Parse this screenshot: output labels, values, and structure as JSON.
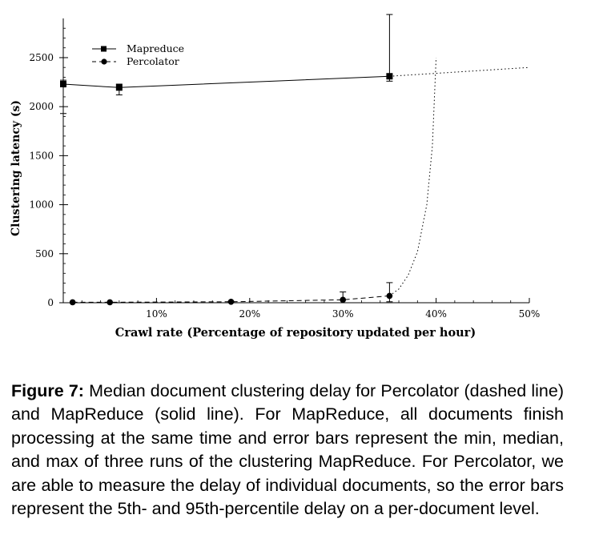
{
  "chart_data": {
    "type": "line",
    "xlabel": "Crawl rate (Percentage of repository updated per hour)",
    "ylabel": "Clustering latency (s)",
    "xlim": [
      0,
      50
    ],
    "ylim": [
      0,
      2900
    ],
    "x_ticks": [
      10,
      20,
      30,
      40,
      50
    ],
    "x_tick_labels": [
      "10%",
      "20%",
      "30%",
      "40%",
      "50%"
    ],
    "y_ticks": [
      0,
      500,
      1000,
      1500,
      2000,
      2500
    ],
    "y_tick_labels": [
      "0",
      "500",
      "1000",
      "1500",
      "2000",
      "2500"
    ],
    "grid": false,
    "legend_position": "top-left",
    "series": [
      {
        "name": "Mapreduce",
        "line_style": "solid",
        "marker": "square",
        "points": [
          {
            "x": 0,
            "y": 2230,
            "err_low": 1930,
            "err_high": 2270
          },
          {
            "x": 6,
            "y": 2195,
            "err_low": 2120,
            "err_high": 2230
          },
          {
            "x": 35,
            "y": 2310,
            "err_low": 2260,
            "err_high": 2940
          }
        ],
        "extrapolation": [
          {
            "x": 35,
            "y": 2310
          },
          {
            "x": 50,
            "y": 2400
          }
        ]
      },
      {
        "name": "Percolator",
        "line_style": "dashed",
        "marker": "circle",
        "points": [
          {
            "x": 1,
            "y": 5,
            "err_low": 5,
            "err_high": 5
          },
          {
            "x": 5,
            "y": 5,
            "err_low": 5,
            "err_high": 5
          },
          {
            "x": 18,
            "y": 10,
            "err_low": 5,
            "err_high": 15
          },
          {
            "x": 30,
            "y": 30,
            "err_low": 0,
            "err_high": 110
          },
          {
            "x": 35,
            "y": 70,
            "err_low": 10,
            "err_high": 205
          }
        ],
        "extrapolation": [
          {
            "x": 35,
            "y": 70
          },
          {
            "x": 36,
            "y": 140
          },
          {
            "x": 37,
            "y": 280
          },
          {
            "x": 38,
            "y": 520
          },
          {
            "x": 39,
            "y": 1000
          },
          {
            "x": 39.6,
            "y": 1600
          },
          {
            "x": 40,
            "y": 2500
          }
        ]
      }
    ]
  },
  "caption": {
    "label": "Figure 7:",
    "text": "Median document clustering delay for Percolator (dashed line) and MapReduce (solid line). For MapReduce, all documents finish processing at the same time and error bars represent the min, median, and max of three runs of the clustering MapReduce. For Percolator, we are able to measure the delay of individual documents, so the error bars represent the 5th- and 95th-percentile delay on a per-document level."
  }
}
